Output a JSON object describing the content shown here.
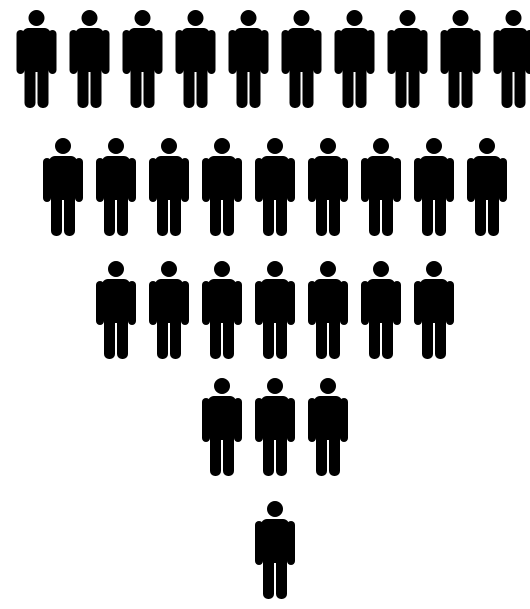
{
  "rows": [
    10,
    9,
    7,
    3,
    1
  ]
}
